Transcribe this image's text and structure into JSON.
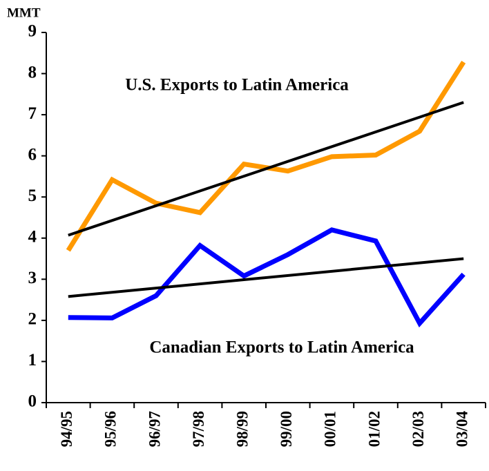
{
  "chart_data": {
    "type": "line",
    "y_unit_label": "MMT",
    "categories": [
      "94/95",
      "95/96",
      "96/97",
      "97/98",
      "98/99",
      "99/00",
      "00/01",
      "01/02",
      "02/03",
      "03/04"
    ],
    "series": [
      {
        "name": "U.S. Exports to Latin America",
        "color": "#ff9900",
        "values": [
          3.7,
          5.42,
          4.85,
          4.62,
          5.8,
          5.63,
          5.98,
          6.02,
          6.6,
          8.28
        ],
        "trend": [
          4.07,
          7.3
        ],
        "trend_color": "#000000"
      },
      {
        "name": "Canadian Exports to Latin America",
        "color": "#0000ff",
        "values": [
          2.07,
          2.06,
          2.6,
          3.82,
          3.08,
          3.6,
          4.2,
          3.93,
          1.93,
          3.12
        ],
        "trend": [
          2.58,
          3.5
        ],
        "trend_color": "#000000"
      }
    ],
    "ylim": [
      0,
      9
    ],
    "yticks": [
      0,
      1,
      2,
      3,
      4,
      5,
      6,
      7,
      8,
      9
    ],
    "grid": false
  }
}
